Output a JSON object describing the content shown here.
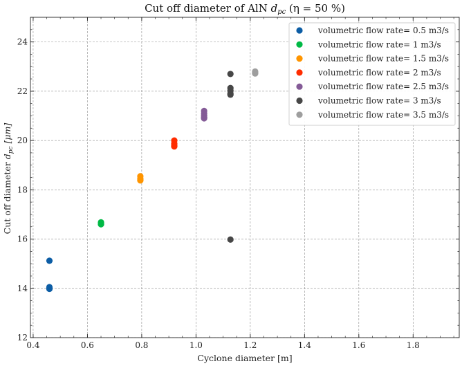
{
  "chart_data": {
    "type": "scatter",
    "title": "Cut off diameter of AlN d_pc (η = 50 %)",
    "title_parts": {
      "prefix": "Cut off diameter of AlN ",
      "symbol": "d",
      "subscript": "pc",
      "suffix": " (η = 50 %)"
    },
    "xlabel": "Cyclone diameter [m]",
    "ylabel": "Cut off diameter d_pc [μm]",
    "ylabel_parts": {
      "prefix": "Cut off diameter ",
      "symbol": "d",
      "subscript": "pc",
      "suffix": " [μm]"
    },
    "xlim": [
      0.39,
      1.97
    ],
    "ylim": [
      12,
      25
    ],
    "xticks": [
      0.4,
      0.6,
      0.8,
      1.0,
      1.2,
      1.4,
      1.6,
      1.8
    ],
    "xtick_labels": [
      "0.4",
      "0.6",
      "0.8",
      "1.0",
      "1.2",
      "1.4",
      "1.6",
      "1.8"
    ],
    "yticks": [
      12,
      14,
      16,
      18,
      20,
      22,
      24
    ],
    "ytick_labels": [
      "12",
      "14",
      "16",
      "18",
      "20",
      "22",
      "24"
    ],
    "grid": true,
    "legend_position": "top-right",
    "series": [
      {
        "name": "volumetric flow rate= 0.5 m3/s",
        "color": "#0c5da5",
        "x": [
          0.46,
          0.46,
          0.46,
          0.46,
          0.46
        ],
        "y": [
          15.12,
          14.05,
          14.0,
          13.98,
          14.02
        ]
      },
      {
        "name": "volumetric flow rate= 1 m3/s",
        "color": "#00b945",
        "x": [
          0.65,
          0.65,
          0.65
        ],
        "y": [
          16.68,
          16.62,
          16.6
        ]
      },
      {
        "name": "volumetric flow rate= 1.5 m3/s",
        "color": "#ff9500",
        "x": [
          0.795,
          0.795,
          0.795,
          0.795
        ],
        "y": [
          18.55,
          18.45,
          18.4,
          18.38
        ]
      },
      {
        "name": "volumetric flow rate= 2 m3/s",
        "color": "#ff2c00",
        "x": [
          0.92,
          0.92,
          0.92,
          0.92,
          0.92
        ],
        "y": [
          20.0,
          19.88,
          19.82,
          19.78,
          19.76
        ]
      },
      {
        "name": "volumetric flow rate= 2.5 m3/s",
        "color": "#845b97",
        "x": [
          1.03,
          1.03,
          1.03,
          1.03,
          1.03,
          1.03
        ],
        "y": [
          21.2,
          21.1,
          21.02,
          20.95,
          20.92,
          20.9
        ]
      },
      {
        "name": "volumetric flow rate= 3 m3/s",
        "color": "#474747",
        "x": [
          1.127,
          1.127,
          1.127,
          1.127,
          1.127,
          1.127
        ],
        "y": [
          22.7,
          22.13,
          22.02,
          21.9,
          21.86,
          15.98
        ]
      },
      {
        "name": "volumetric flow rate= 3.5 m3/s",
        "color": "#9e9e9e",
        "x": [
          1.218,
          1.218,
          1.218
        ],
        "y": [
          22.8,
          22.75,
          22.72
        ]
      }
    ]
  }
}
